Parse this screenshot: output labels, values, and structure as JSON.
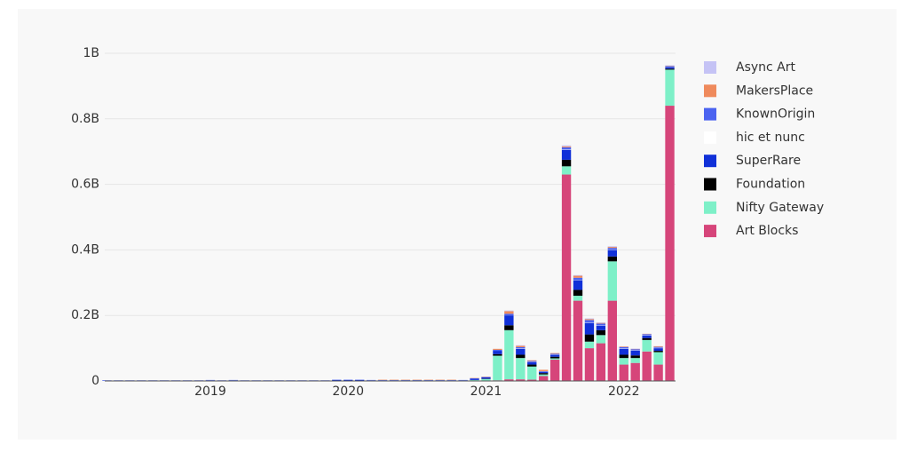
{
  "chart_data": {
    "type": "stacked_bar",
    "categories": [
      null,
      null,
      null,
      null,
      null,
      null,
      null,
      null,
      null,
      "2019",
      null,
      null,
      null,
      null,
      null,
      null,
      null,
      null,
      null,
      null,
      null,
      "2020",
      null,
      null,
      null,
      null,
      null,
      null,
      null,
      null,
      null,
      null,
      null,
      "2021",
      null,
      null,
      null,
      null,
      null,
      null,
      null,
      null,
      null,
      null,
      null,
      "2022",
      null,
      null,
      null,
      null
    ],
    "series": [
      {
        "name": "Art Blocks",
        "color": "#d6457a",
        "values": [
          0,
          0,
          0,
          0,
          0,
          0,
          0,
          0,
          0,
          0,
          0,
          0,
          0,
          0,
          0,
          0,
          0,
          0,
          0,
          0,
          0,
          0,
          0,
          0,
          0,
          0,
          0,
          0,
          0,
          0,
          0,
          0,
          0,
          0.001,
          0.002,
          0.005,
          0.005,
          0.004,
          0.015,
          0.065,
          0.63,
          0.245,
          0.1,
          0.115,
          0.245,
          0.05,
          0.055,
          0.09,
          0.05,
          0.84
        ]
      },
      {
        "name": "Nifty Gateway",
        "color": "#7ef0c8",
        "values": [
          0,
          0,
          0,
          0,
          0,
          0,
          0,
          0,
          0,
          0,
          0,
          0,
          0,
          0,
          0,
          0,
          0,
          0,
          0,
          0,
          0.001,
          0.001,
          0.001,
          0.001,
          0.001,
          0.001,
          0.001,
          0.001,
          0.001,
          0.001,
          0.001,
          0.001,
          0.003,
          0.005,
          0.075,
          0.15,
          0.065,
          0.04,
          0.005,
          0.004,
          0.025,
          0.015,
          0.02,
          0.025,
          0.12,
          0.02,
          0.015,
          0.035,
          0.038,
          0.11
        ]
      },
      {
        "name": "Foundation",
        "color": "#000000",
        "values": [
          0,
          0,
          0,
          0,
          0,
          0,
          0,
          0,
          0,
          0,
          0,
          0,
          0,
          0,
          0,
          0,
          0,
          0,
          0,
          0,
          0,
          0,
          0,
          0,
          0,
          0,
          0,
          0,
          0,
          0,
          0,
          0,
          0,
          0.001,
          0.005,
          0.015,
          0.01,
          0.006,
          0.004,
          0.005,
          0.02,
          0.018,
          0.022,
          0.015,
          0.015,
          0.01,
          0.008,
          0.006,
          0.004,
          0.003
        ]
      },
      {
        "name": "SuperRare",
        "color": "#1030d8",
        "values": [
          0.001,
          0.001,
          0.001,
          0.001,
          0.001,
          0.001,
          0.001,
          0.001,
          0.001,
          0.002,
          0.001,
          0.002,
          0.001,
          0.001,
          0.001,
          0.001,
          0.001,
          0.001,
          0.001,
          0.001,
          0.002,
          0.002,
          0.002,
          0.001,
          0.001,
          0.001,
          0.001,
          0.001,
          0.001,
          0.001,
          0.001,
          0.001,
          0.004,
          0.004,
          0.01,
          0.03,
          0.018,
          0.008,
          0.005,
          0.006,
          0.03,
          0.03,
          0.035,
          0.013,
          0.02,
          0.018,
          0.015,
          0.008,
          0.008,
          0.005
        ]
      },
      {
        "name": "hic et nunc",
        "color": "#ffffff",
        "values": [
          0,
          0,
          0,
          0,
          0,
          0,
          0,
          0,
          0,
          0,
          0,
          0,
          0,
          0,
          0,
          0,
          0,
          0,
          0,
          0,
          0,
          0,
          0,
          0,
          0,
          0,
          0,
          0,
          0,
          0,
          0,
          0,
          0,
          0,
          0,
          0,
          0.001,
          0.001,
          0.001,
          0.001,
          0.001,
          0.001,
          0.001,
          0.001,
          0.001,
          0.001,
          0.001,
          0.001,
          0.001,
          0.001
        ]
      },
      {
        "name": "KnownOrigin",
        "color": "#4b63f0",
        "values": [
          0.001,
          0.001,
          0.001,
          0.001,
          0.001,
          0.001,
          0.001,
          0.001,
          0.001,
          0.001,
          0.001,
          0.001,
          0.001,
          0.001,
          0.001,
          0.001,
          0.001,
          0.001,
          0.001,
          0.001,
          0.001,
          0.001,
          0.001,
          0.001,
          0.001,
          0.001,
          0.001,
          0.001,
          0.001,
          0.001,
          0.001,
          0.001,
          0.001,
          0.001,
          0.003,
          0.005,
          0.004,
          0.002,
          0,
          0.002,
          0.007,
          0.006,
          0.008,
          0.006,
          0.005,
          0.004,
          0.003,
          0.003,
          0.003,
          0.002
        ]
      },
      {
        "name": "MakersPlace",
        "color": "#ef8a5c",
        "values": [
          0,
          0,
          0,
          0,
          0,
          0,
          0,
          0,
          0,
          0,
          0,
          0,
          0,
          0,
          0,
          0,
          0,
          0,
          0,
          0,
          0,
          0,
          0,
          0,
          0.001,
          0.001,
          0.001,
          0.001,
          0.001,
          0.001,
          0.001,
          0,
          0.001,
          0.001,
          0.003,
          0.008,
          0.004,
          0.002,
          0.004,
          0.002,
          0.003,
          0.006,
          0.003,
          0.002,
          0.003,
          0.002,
          0.001,
          0.001,
          0.002,
          0.001
        ]
      },
      {
        "name": "Async Art",
        "color": "#c5c3f5",
        "values": [
          0,
          0,
          0,
          0,
          0,
          0,
          0,
          0,
          0,
          0,
          0,
          0,
          0,
          0,
          0,
          0,
          0,
          0,
          0,
          0,
          0,
          0,
          0,
          0,
          0,
          0,
          0,
          0,
          0,
          0,
          0,
          0,
          0,
          0,
          0,
          0.002,
          0.002,
          0,
          0,
          0,
          0.003,
          0.002,
          0.002,
          0.002,
          0.002,
          0.001,
          0.001,
          0,
          0,
          0.001
        ]
      }
    ],
    "ylim": [
      0,
      1
    ],
    "yticks": [
      0,
      {
        "value": 0.2,
        "label": "0.2B"
      },
      {
        "value": 0.4,
        "label": "0.4B"
      },
      {
        "value": 0.6,
        "label": "0.6B"
      },
      {
        "value": 0.8,
        "label": "0.8B"
      },
      {
        "value": 1,
        "label": "1B"
      }
    ],
    "grid": true,
    "legend": "right"
  }
}
